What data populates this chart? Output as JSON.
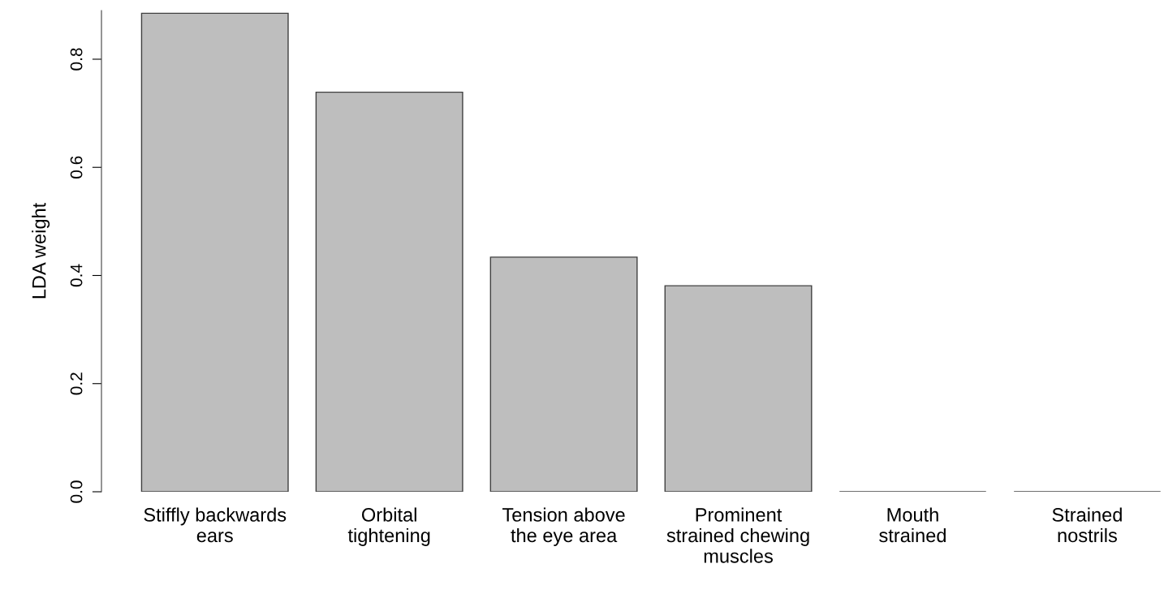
{
  "chart_data": {
    "type": "bar",
    "ylabel": "LDA weight",
    "categories": [
      "Stiffly backwards\nears",
      "Orbital\ntightening",
      "Tension above\nthe eye area",
      "Prominent\nstrained chewing\nmuscles",
      "Mouth\nstrained",
      "Strained\nnostrils"
    ],
    "values": [
      0.885,
      0.739,
      0.434,
      0.381,
      0,
      0
    ],
    "color": "#bebebe",
    "ylim": [
      0,
      0.89
    ],
    "yticks": [
      {
        "value": 0,
        "label": "0.0"
      },
      0.2,
      0.4,
      0.6,
      0.8
    ],
    "grid": false
  }
}
